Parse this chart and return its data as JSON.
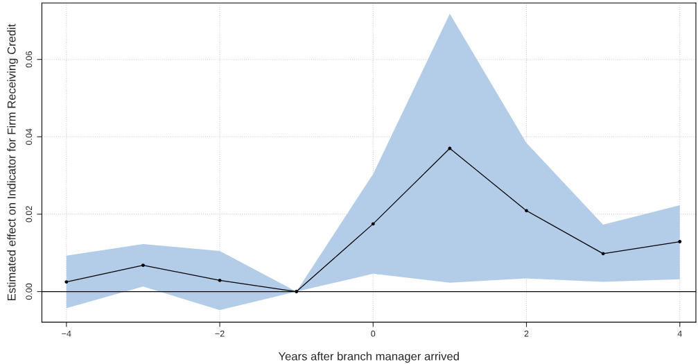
{
  "chart_data": {
    "type": "line",
    "xlabel": "Years after branch manager arrived",
    "ylabel": "Estimated effect on Indicator for Firm Receiving Credit",
    "x": [
      -4,
      -3,
      -2,
      -1,
      0,
      1,
      2,
      3,
      4
    ],
    "series": [
      {
        "color": "#000000",
        "values": [
          0.0025,
          0.0068,
          0.0029,
          0,
          0.0175,
          0.037,
          0.0209,
          0.0098,
          0.0129
        ],
        "lower": [
          -0.0043,
          0.0013,
          -0.0048,
          0,
          0.0046,
          0.0023,
          0.0034,
          0.0025,
          0.0032
        ],
        "upper": [
          0.0093,
          0.0123,
          0.0105,
          0,
          0.0304,
          0.0718,
          0.0384,
          0.0173,
          0.0223
        ]
      }
    ],
    "xlim": [
      -4.32,
      4.21
    ],
    "ylim": [
      -0.0079,
      0.0746
    ],
    "xticks": [
      {
        "value": -4,
        "label": "−4"
      },
      {
        "value": -2,
        "label": "−2"
      },
      0,
      2,
      4
    ],
    "yticks": [
      {
        "value": 0,
        "label": "0.00"
      },
      {
        "value": 0.02,
        "label": "0.02"
      },
      {
        "value": 0.04,
        "label": "0.04"
      },
      {
        "value": 0.06,
        "label": "0.06"
      }
    ],
    "ref_lines": [
      {
        "axis": "y",
        "value": 0,
        "color": "#000000",
        "line_style": "solid"
      }
    ],
    "grid": true,
    "marker": "circle",
    "line_style": "solid",
    "legend": false
  }
}
